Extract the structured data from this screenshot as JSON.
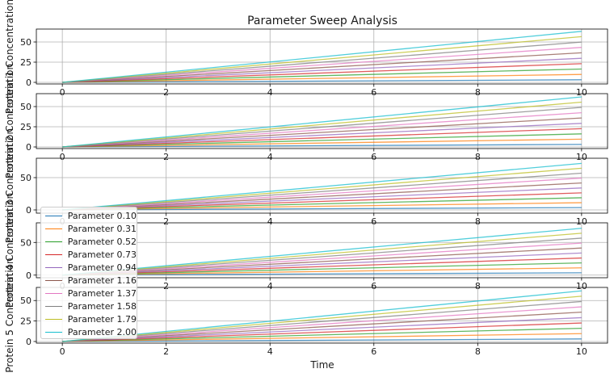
{
  "chart_data": {
    "type": "line",
    "title": "Parameter Sweep Analysis",
    "xlabel": "Time",
    "xlim": [
      -0.5,
      10.5
    ],
    "xticks": [
      0,
      2,
      4,
      6,
      8,
      10
    ],
    "grid": true,
    "legend_placement": "lower-left",
    "x": [
      0,
      10
    ],
    "series_names": [
      "Parameter 0.10",
      "Parameter 0.31",
      "Parameter 0.52",
      "Parameter 0.73",
      "Parameter 0.94",
      "Parameter 1.16",
      "Parameter 1.37",
      "Parameter 1.58",
      "Parameter 1.79",
      "Parameter 2.00"
    ],
    "colors": [
      "#1f77b4",
      "#ff7f0e",
      "#2ca02c",
      "#d62728",
      "#9467bd",
      "#8c564b",
      "#e377c2",
      "#7f7f7f",
      "#bcbd22",
      "#17becf"
    ],
    "panels": [
      {
        "ylabel": "Protein 1 Concentration",
        "ylim": [
          -2,
          66
        ],
        "yticks": [
          0,
          25,
          50
        ],
        "series_end_values": [
          3.2,
          9.8,
          16.5,
          23.1,
          29.8,
          36.6,
          43.3,
          49.9,
          56.6,
          63.2
        ]
      },
      {
        "ylabel": "Protein 2 Concentration",
        "ylim": [
          -2,
          66
        ],
        "yticks": [
          0,
          25,
          50
        ],
        "series_end_values": [
          3.1,
          9.6,
          16.2,
          22.6,
          29.2,
          35.9,
          42.4,
          49.0,
          55.5,
          62.0
        ]
      },
      {
        "ylabel": "Protein 3 Concentration",
        "ylim": [
          -5,
          80
        ],
        "yticks": [
          0,
          50
        ],
        "series_end_values": [
          3.6,
          11.2,
          18.8,
          26.4,
          34.0,
          41.7,
          49.3,
          56.9,
          64.5,
          72.0
        ]
      },
      {
        "ylabel": "Protein 4 Concentration",
        "ylim": [
          -4,
          80
        ],
        "yticks": [
          0,
          50
        ],
        "series_end_values": [
          3.6,
          11.1,
          18.7,
          26.2,
          33.8,
          41.5,
          49.0,
          56.6,
          64.1,
          71.7
        ]
      },
      {
        "ylabel": "Protein 5 Concentration",
        "ylim": [
          -2,
          66
        ],
        "yticks": [
          0,
          25,
          50
        ],
        "series_end_values": [
          3.1,
          9.6,
          16.1,
          22.6,
          29.1,
          35.8,
          42.3,
          48.8,
          55.3,
          61.8
        ]
      }
    ]
  }
}
